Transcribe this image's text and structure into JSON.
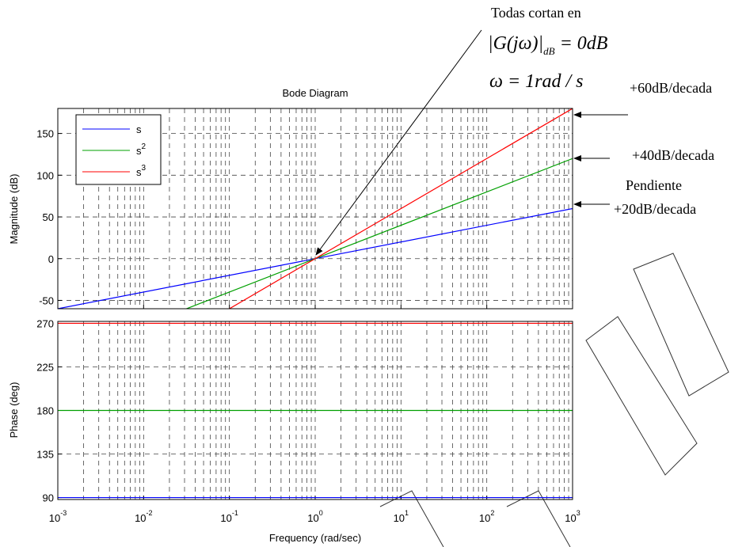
{
  "chart_data": [
    {
      "type": "line",
      "title": "Bode Diagram",
      "y_label": "Magnitude (dB)",
      "xscale": "log",
      "xlim": [
        0.001,
        1000
      ],
      "ylim": [
        -60,
        180
      ],
      "yticks": [
        -50,
        0,
        50,
        100,
        150
      ],
      "grid": true,
      "legend": "upper left",
      "x": [
        0.001,
        1000
      ],
      "series": [
        {
          "name": "s",
          "color": "#0000ff",
          "values": [
            -60,
            60
          ]
        },
        {
          "name": "s",
          "name_superscript": "2",
          "color": "#00a000",
          "values": [
            -120,
            120
          ]
        },
        {
          "name": "s",
          "name_superscript": "3",
          "color": "#ff0000",
          "values": [
            -180,
            180
          ]
        }
      ],
      "annotations": [
        {
          "text": "Todas cortan en"
        },
        {
          "text": "|G(jω)|",
          "subscript": "dB",
          "rest": " = 0dB"
        },
        {
          "text": "ω = 1rad / s"
        },
        {
          "text": "+60dB/decada"
        },
        {
          "text": "+40dB/decada"
        },
        {
          "text": "Pendiente"
        },
        {
          "text": "+20dB/decada"
        }
      ]
    },
    {
      "type": "line",
      "x_label": "Frequency  (rad/sec)",
      "y_label": "Phase (deg)",
      "xscale": "log",
      "xlim": [
        0.001,
        1000
      ],
      "ylim": [
        88,
        272
      ],
      "yticks": [
        90,
        135,
        180,
        225,
        270
      ],
      "grid": true,
      "xticks": [
        {
          "value": 0.001,
          "label": "10",
          "exponent": "-3"
        },
        {
          "value": 0.01,
          "label": "10",
          "exponent": "-2"
        },
        {
          "value": 0.1,
          "label": "10",
          "exponent": "-1"
        },
        {
          "value": 1,
          "label": "10",
          "exponent": "0"
        },
        {
          "value": 10,
          "label": "10",
          "exponent": "1"
        },
        {
          "value": 100,
          "label": "10",
          "exponent": "2"
        },
        {
          "value": 1000,
          "label": "10",
          "exponent": "3"
        }
      ],
      "x": [
        0.001,
        1000
      ],
      "series": [
        {
          "name": "s",
          "color": "#0000ff",
          "values": [
            90,
            90
          ]
        },
        {
          "name": "s",
          "name_superscript": "2",
          "color": "#00a000",
          "values": [
            180,
            180
          ]
        },
        {
          "name": "s",
          "name_superscript": "3",
          "color": "#ff0000",
          "values": [
            270,
            270
          ]
        }
      ]
    }
  ]
}
